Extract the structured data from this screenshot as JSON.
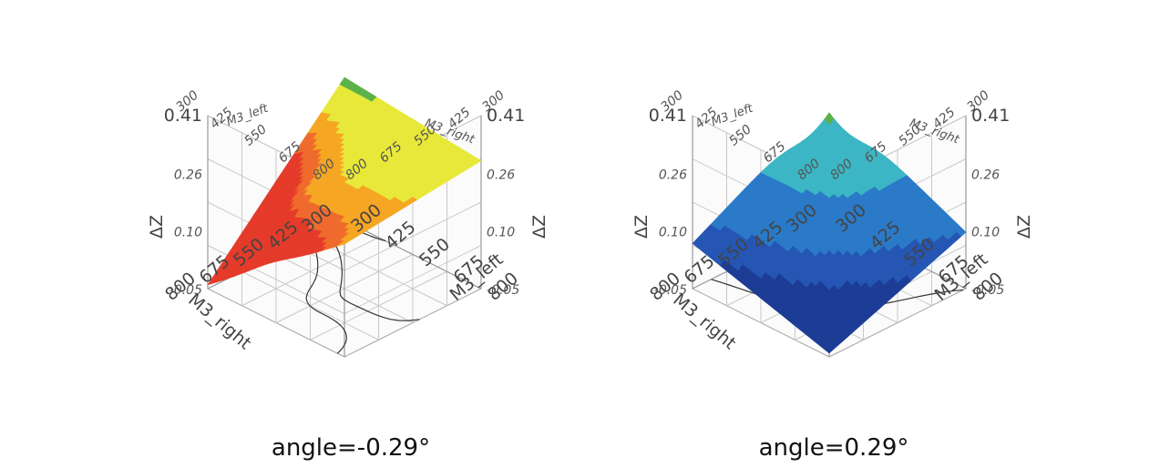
{
  "chart_data": [
    {
      "type": "surface3d",
      "caption": "angle=-0.29°",
      "xlabel": "M3_left",
      "ylabel": "M3_right",
      "zlabel": "ΔZ",
      "xlim": [
        300,
        800
      ],
      "ylim": [
        300,
        800
      ],
      "zlim": [
        -0.05,
        0.41
      ],
      "x_ticks": [
        "300",
        "425",
        "550",
        "675",
        "800"
      ],
      "y_ticks": [
        "300",
        "425",
        "550",
        "675",
        "800"
      ],
      "z_ticks": [
        "-0.05",
        "0.10",
        "0.26",
        "0.41"
      ],
      "colormap": [
        "#e53b2a",
        "#ef6b2d",
        "#f5a623",
        "#e8e83a",
        "#5bb24a"
      ],
      "contour_projection": true,
      "grid": true,
      "corners": {
        "x300_y300": 0.33,
        "x800_y300": 0.29,
        "x300_y800": -0.04,
        "x800_y800": 0.25
      }
    },
    {
      "type": "surface3d",
      "caption": "angle=0.29°",
      "xlabel": "M3_left",
      "ylabel": "M3_right",
      "zlabel": "ΔZ",
      "xlim": [
        300,
        800
      ],
      "ylim": [
        300,
        800
      ],
      "zlim": [
        -0.05,
        0.41
      ],
      "x_ticks": [
        "300",
        "425",
        "550",
        "675",
        "800"
      ],
      "y_ticks": [
        "300",
        "425",
        "550",
        "675",
        "800"
      ],
      "z_ticks": [
        "-0.05",
        "0.10",
        "0.26",
        "0.41"
      ],
      "colormap": [
        "#1c3c96",
        "#2556b4",
        "#2a7ac8",
        "#3cb6c4",
        "#5bb24a"
      ],
      "contour_projection": true,
      "grid": true,
      "corners": {
        "x300_y300": 0.27,
        "x800_y300": 0.1,
        "x300_y800": 0.07,
        "x800_y800": -0.04
      }
    }
  ]
}
